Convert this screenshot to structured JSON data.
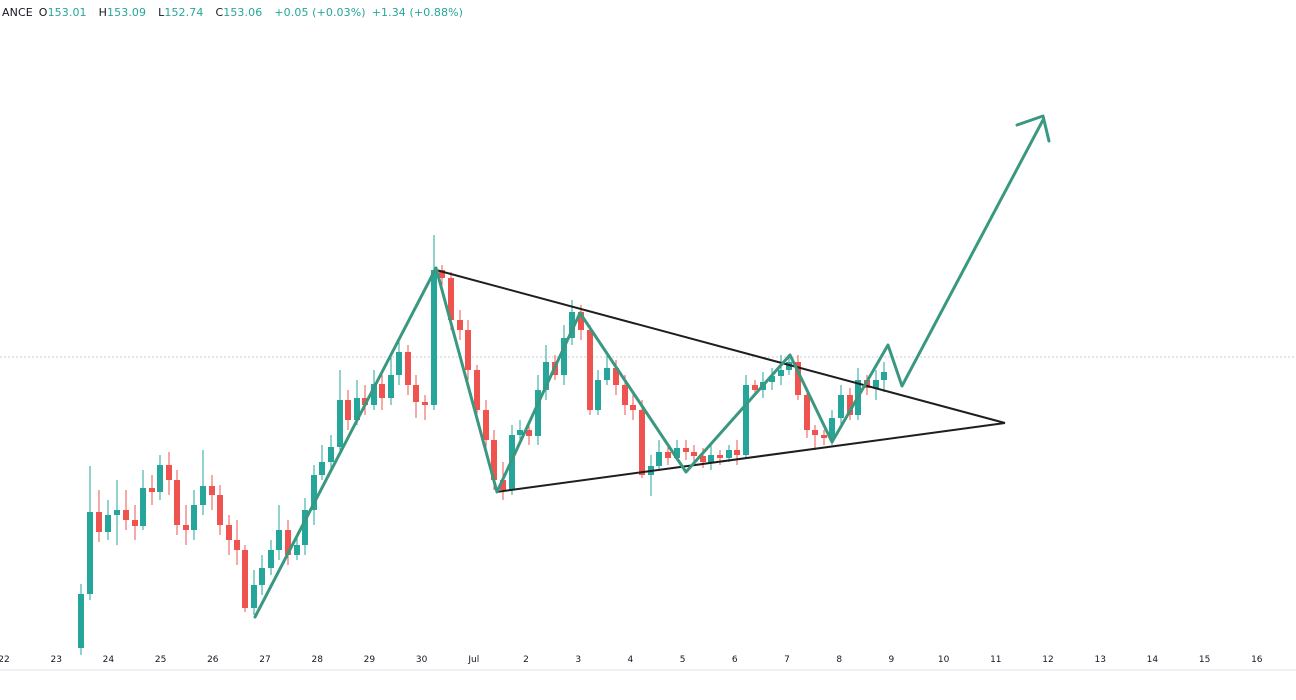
{
  "legend": {
    "symbol": "ANCE",
    "open_label": "O",
    "open": "153.01",
    "high_label": "H",
    "high": "153.09",
    "low_label": "L",
    "low": "152.74",
    "close_label": "C",
    "close": "153.06",
    "change": "+0.05 (+0.03%)",
    "change2": "+1.34 (+0.88%)"
  },
  "colors": {
    "up": "#26a69a",
    "down": "#ef5350",
    "pattern": "#3b9880",
    "trendline": "#1e1e1e",
    "price_line": "#c8ccd6"
  },
  "chart_data": {
    "type": "candlestick",
    "title": "",
    "xlabel": "",
    "ylabel": "",
    "x_tick_labels": [
      "22",
      "23",
      "24",
      "25",
      "26",
      "27",
      "28",
      "29",
      "30",
      "Jul",
      "2",
      "3",
      "4",
      "5",
      "6",
      "7",
      "8",
      "9",
      "10",
      "11",
      "12",
      "13",
      "14",
      "15",
      "16"
    ],
    "annotations": [
      "zigzag price path (green) with breakout arrow",
      "symmetrical triangle trendlines (black)"
    ]
  }
}
